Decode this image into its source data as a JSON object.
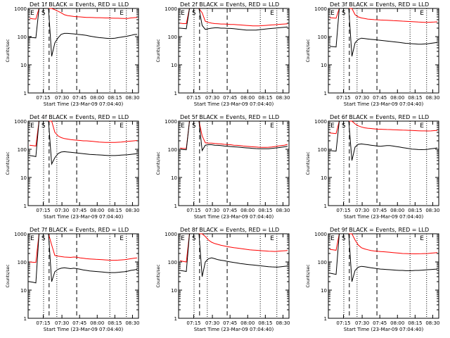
{
  "chart_data": [
    {
      "type": "line",
      "title": "Det 1f BLACK = Events, RED = LLD",
      "ylabel": "Counts/sec",
      "xlabel": "Start Time (23-Mar-09 07:04:40)",
      "x_ticks": [
        "07:15",
        "07:30",
        "07:45",
        "08:00",
        "08:15",
        "08:30"
      ],
      "y_ticks": [
        "1",
        "10",
        "100",
        "1000"
      ],
      "ylim": [
        1,
        1000
      ],
      "ylog": true,
      "markers": [
        "E",
        "S",
        "E"
      ],
      "series": [
        {
          "color": "#ff0000",
          "values": [
            450,
            430,
            420,
            1000,
            1000,
            1000,
            1000,
            1000,
            900,
            800,
            700,
            600,
            560,
            540,
            520,
            510,
            500,
            490,
            480,
            480,
            475,
            470,
            470,
            465,
            460,
            460,
            455,
            450,
            450,
            445,
            440,
            440,
            460,
            470,
            480
          ]
        },
        {
          "color": "#000000",
          "values": [
            95,
            92,
            90,
            1000,
            1000,
            1000,
            1000,
            20,
            60,
            90,
            120,
            130,
            130,
            128,
            125,
            120,
            118,
            115,
            110,
            105,
            100,
            96,
            92,
            90,
            88,
            86,
            86,
            88,
            92,
            96,
            100,
            105,
            110,
            118,
            120
          ]
        }
      ]
    },
    {
      "type": "line",
      "title": "Det 2f BLACK = Events, RED = LLD",
      "ylabel": "Counts/sec",
      "xlabel": "Start Time (23-Mar-09 07:04:40)",
      "x_ticks": [
        "07:15",
        "07:30",
        "07:45",
        "08:00",
        "08:15",
        "08:30"
      ],
      "y_ticks": [
        "1",
        "10",
        "100",
        "1000"
      ],
      "ylim": [
        1,
        1000
      ],
      "ylog": true,
      "markers": [
        "E",
        "S",
        "E"
      ],
      "series": [
        {
          "color": "#ff0000",
          "values": [
            300,
            290,
            290,
            1000,
            1000,
            1000,
            1000,
            700,
            350,
            320,
            300,
            290,
            285,
            280,
            280,
            275,
            270,
            270,
            265,
            260,
            255,
            250,
            245,
            240,
            240,
            240,
            245,
            250,
            255,
            260,
            265,
            270,
            275,
            280,
            285
          ]
        },
        {
          "color": "#000000",
          "values": [
            200,
            195,
            190,
            1000,
            1000,
            1000,
            1000,
            250,
            180,
            190,
            200,
            205,
            205,
            200,
            200,
            195,
            195,
            190,
            185,
            180,
            175,
            170,
            170,
            170,
            170,
            175,
            180,
            185,
            190,
            195,
            200,
            205,
            210,
            215,
            220
          ]
        }
      ]
    },
    {
      "type": "line",
      "title": "Det 3f BLACK = Events, RED = LLD",
      "ylabel": "Counts/sec",
      "xlabel": "Start Time (23-Mar-09 07:04:40)",
      "x_ticks": [
        "07:15",
        "07:30",
        "07:45",
        "08:00",
        "08:15",
        "08:30"
      ],
      "y_ticks": [
        "1",
        "10",
        "100",
        "1000"
      ],
      "ylim": [
        1,
        1000
      ],
      "ylog": true,
      "markers": [
        "E",
        "S",
        "E"
      ],
      "series": [
        {
          "color": "#ff0000",
          "values": [
            470,
            460,
            450,
            1000,
            1000,
            1000,
            1000,
            1000,
            600,
            500,
            460,
            440,
            420,
            410,
            400,
            395,
            390,
            385,
            380,
            375,
            370,
            365,
            360,
            355,
            350,
            345,
            340,
            335,
            330,
            325,
            320,
            320,
            325,
            330,
            335
          ]
        },
        {
          "color": "#000000",
          "values": [
            45,
            44,
            43,
            1000,
            1000,
            1000,
            1000,
            20,
            60,
            80,
            88,
            85,
            82,
            80,
            78,
            76,
            74,
            72,
            70,
            68,
            66,
            64,
            62,
            60,
            58,
            57,
            56,
            55,
            54,
            54,
            55,
            56,
            58,
            60,
            62
          ]
        }
      ]
    },
    {
      "type": "line",
      "title": "Det 4f BLACK = Events, RED = LLD",
      "ylabel": "Counts/sec",
      "xlabel": "Start Time (23-Mar-09 07:04:40)",
      "x_ticks": [
        "07:15",
        "07:30",
        "07:45",
        "08:00",
        "08:15",
        "08:30"
      ],
      "y_ticks": [
        "1",
        "10",
        "100",
        "1000"
      ],
      "ylim": [
        1,
        1000
      ],
      "ylog": true,
      "markers": [
        "E",
        "S",
        "E"
      ],
      "series": [
        {
          "color": "#ff0000",
          "values": [
            140,
            135,
            130,
            1000,
            1000,
            1000,
            1000,
            1000,
            400,
            300,
            260,
            240,
            230,
            220,
            215,
            210,
            205,
            200,
            200,
            195,
            190,
            185,
            180,
            178,
            176,
            175,
            175,
            176,
            178,
            180,
            185,
            190,
            195,
            200,
            205
          ]
        },
        {
          "color": "#000000",
          "values": [
            60,
            58,
            55,
            1000,
            1000,
            1000,
            1000,
            30,
            50,
            70,
            80,
            82,
            80,
            78,
            76,
            74,
            72,
            70,
            68,
            66,
            65,
            64,
            63,
            62,
            61,
            60,
            60,
            60,
            61,
            62,
            63,
            64,
            66,
            68,
            70
          ]
        }
      ]
    },
    {
      "type": "line",
      "title": "Det 5f BLACK = Events, RED = LLD",
      "ylabel": "Counts/sec",
      "xlabel": "Start Time (23-Mar-09 07:04:40)",
      "x_ticks": [
        "07:15",
        "07:30",
        "07:45",
        "08:00",
        "08:15",
        "08:30"
      ],
      "y_ticks": [
        "1",
        "10",
        "100",
        "1000"
      ],
      "ylim": [
        1,
        1000
      ],
      "ylog": true,
      "markers": [
        "E",
        "S",
        "E"
      ],
      "series": [
        {
          "color": "#ff0000",
          "values": [
            110,
            108,
            106,
            1000,
            1000,
            1000,
            1000,
            300,
            170,
            165,
            165,
            160,
            158,
            155,
            150,
            148,
            145,
            140,
            138,
            135,
            130,
            128,
            125,
            122,
            120,
            118,
            117,
            117,
            118,
            120,
            125,
            130,
            135,
            140,
            150
          ]
        },
        {
          "color": "#000000",
          "values": [
            100,
            98,
            96,
            1000,
            1000,
            1000,
            1000,
            90,
            140,
            145,
            145,
            140,
            138,
            135,
            130,
            128,
            125,
            122,
            120,
            118,
            115,
            112,
            110,
            108,
            106,
            105,
            104,
            104,
            105,
            107,
            110,
            114,
            118,
            122,
            128
          ]
        }
      ]
    },
    {
      "type": "line",
      "title": "Det 6f BLACK = Events, RED = LLD",
      "ylabel": "Counts/sec",
      "xlabel": "Start Time (23-Mar-09 07:04:40)",
      "x_ticks": [
        "07:15",
        "07:30",
        "07:45",
        "08:00",
        "08:15",
        "08:30"
      ],
      "y_ticks": [
        "1",
        "10",
        "100",
        "1000"
      ],
      "ylim": [
        1,
        1000
      ],
      "ylog": true,
      "markers": [
        "E",
        "S",
        "E"
      ],
      "series": [
        {
          "color": "#ff0000",
          "values": [
            380,
            370,
            360,
            1000,
            1000,
            1000,
            1000,
            1000,
            800,
            680,
            620,
            580,
            560,
            545,
            530,
            520,
            515,
            510,
            505,
            500,
            495,
            490,
            485,
            480,
            475,
            470,
            465,
            460,
            455,
            450,
            448,
            446,
            450,
            460,
            470
          ]
        },
        {
          "color": "#000000",
          "values": [
            90,
            88,
            86,
            1000,
            1000,
            1000,
            1000,
            40,
            120,
            150,
            155,
            150,
            145,
            140,
            135,
            130,
            128,
            132,
            136,
            135,
            130,
            125,
            120,
            115,
            110,
            106,
            102,
            100,
            98,
            97,
            98,
            100,
            104,
            108,
            112
          ]
        }
      ]
    },
    {
      "type": "line",
      "title": "Det 7f BLACK = Events, RED = LLD",
      "ylabel": "Counts/sec",
      "xlabel": "Start Time (23-Mar-09 07:04:40)",
      "x_ticks": [
        "07:15",
        "07:30",
        "07:45",
        "08:00",
        "08:15",
        "08:30"
      ],
      "y_ticks": [
        "1",
        "10",
        "100",
        "1000"
      ],
      "ylim": [
        1,
        1000
      ],
      "ylog": true,
      "markers": [
        "E",
        "S",
        "E"
      ],
      "series": [
        {
          "color": "#ff0000",
          "values": [
            100,
            98,
            96,
            1000,
            1000,
            1000,
            1000,
            400,
            170,
            160,
            155,
            150,
            148,
            145,
            150,
            148,
            140,
            135,
            130,
            128,
            126,
            124,
            122,
            120,
            118,
            116,
            115,
            115,
            116,
            118,
            120,
            125,
            130,
            135,
            140
          ]
        },
        {
          "color": "#000000",
          "values": [
            20,
            19,
            18,
            1000,
            1000,
            1000,
            1000,
            20,
            45,
            55,
            60,
            62,
            60,
            58,
            60,
            58,
            55,
            52,
            50,
            48,
            47,
            46,
            45,
            44,
            43,
            42,
            42,
            42,
            43,
            44,
            45,
            47,
            50,
            52,
            55
          ]
        }
      ]
    },
    {
      "type": "line",
      "title": "Det 8f BLACK = Events, RED = LLD",
      "ylabel": "Counts/sec",
      "xlabel": "Start Time (23-Mar-09 07:04:40)",
      "x_ticks": [
        "07:15",
        "07:30",
        "07:45",
        "08:00",
        "08:15",
        "08:30"
      ],
      "y_ticks": [
        "1",
        "10",
        "100",
        "1000"
      ],
      "ylim": [
        1,
        1000
      ],
      "ylog": true,
      "markers": [
        "E",
        "S",
        "E"
      ],
      "series": [
        {
          "color": "#ff0000",
          "values": [
            110,
            105,
            100,
            1000,
            1000,
            1000,
            1000,
            1000,
            800,
            600,
            500,
            450,
            420,
            390,
            370,
            350,
            335,
            320,
            310,
            300,
            290,
            280,
            270,
            265,
            260,
            255,
            250,
            245,
            240,
            238,
            236,
            240,
            245,
            250,
            255
          ]
        },
        {
          "color": "#000000",
          "values": [
            50,
            48,
            46,
            1000,
            1000,
            1000,
            1000,
            30,
            100,
            130,
            140,
            130,
            120,
            115,
            110,
            105,
            100,
            96,
            92,
            88,
            85,
            82,
            80,
            78,
            76,
            74,
            72,
            70,
            68,
            67,
            66,
            66,
            68,
            70,
            72
          ]
        }
      ]
    },
    {
      "type": "line",
      "title": "Det 9f BLACK = Events, RED = LLD",
      "ylabel": "Counts/sec",
      "xlabel": "Start Time (23-Mar-09 07:04:40)",
      "x_ticks": [
        "07:15",
        "07:30",
        "07:45",
        "08:00",
        "08:15",
        "08:30"
      ],
      "y_ticks": [
        "1",
        "10",
        "100",
        "1000"
      ],
      "ylim": [
        1,
        1000
      ],
      "ylog": true,
      "markers": [
        "E",
        "S",
        "E"
      ],
      "series": [
        {
          "color": "#ff0000",
          "values": [
            280,
            270,
            260,
            1000,
            1000,
            1000,
            1000,
            1000,
            600,
            400,
            320,
            290,
            270,
            255,
            245,
            240,
            235,
            230,
            225,
            220,
            215,
            210,
            205,
            200,
            198,
            196,
            195,
            194,
            195,
            196,
            198,
            200,
            205,
            210,
            215
          ]
        },
        {
          "color": "#000000",
          "values": [
            40,
            38,
            36,
            1000,
            1000,
            1000,
            1000,
            20,
            50,
            65,
            70,
            68,
            65,
            62,
            60,
            58,
            56,
            55,
            54,
            53,
            52,
            51,
            50,
            50,
            49,
            49,
            49,
            50,
            50,
            51,
            52,
            53,
            54,
            55,
            56
          ]
        }
      ]
    }
  ]
}
